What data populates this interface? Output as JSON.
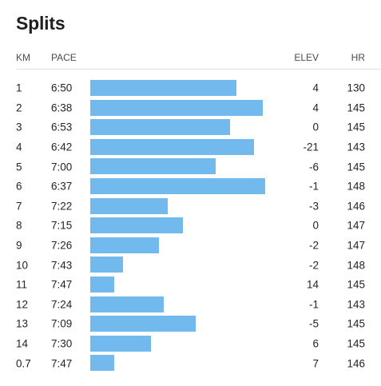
{
  "title": "Splits",
  "columns": {
    "km": "KM",
    "pace": "PACE",
    "elev": "ELEV",
    "hr": "HR"
  },
  "colors": {
    "bar": "#72b9ee"
  },
  "splits": [
    {
      "km": "1",
      "pace": "6:50",
      "elev": "4",
      "hr": "130",
      "pace_seconds": 410
    },
    {
      "km": "2",
      "pace": "6:38",
      "elev": "4",
      "hr": "145",
      "pace_seconds": 398
    },
    {
      "km": "3",
      "pace": "6:53",
      "elev": "0",
      "hr": "145",
      "pace_seconds": 413
    },
    {
      "km": "4",
      "pace": "6:42",
      "elev": "-21",
      "hr": "143",
      "pace_seconds": 402
    },
    {
      "km": "5",
      "pace": "7:00",
      "elev": "-6",
      "hr": "145",
      "pace_seconds": 420
    },
    {
      "km": "6",
      "pace": "6:37",
      "elev": "-1",
      "hr": "148",
      "pace_seconds": 397
    },
    {
      "km": "7",
      "pace": "7:22",
      "elev": "-3",
      "hr": "146",
      "pace_seconds": 442
    },
    {
      "km": "8",
      "pace": "7:15",
      "elev": "0",
      "hr": "147",
      "pace_seconds": 435
    },
    {
      "km": "9",
      "pace": "7:26",
      "elev": "-2",
      "hr": "147",
      "pace_seconds": 446
    },
    {
      "km": "10",
      "pace": "7:43",
      "elev": "-2",
      "hr": "148",
      "pace_seconds": 463
    },
    {
      "km": "11",
      "pace": "7:47",
      "elev": "14",
      "hr": "145",
      "pace_seconds": 467
    },
    {
      "km": "12",
      "pace": "7:24",
      "elev": "-1",
      "hr": "143",
      "pace_seconds": 444
    },
    {
      "km": "13",
      "pace": "7:09",
      "elev": "-5",
      "hr": "145",
      "pace_seconds": 429
    },
    {
      "km": "14",
      "pace": "7:30",
      "elev": "6",
      "hr": "145",
      "pace_seconds": 450
    },
    {
      "km": "0.7",
      "pace": "7:47",
      "elev": "7",
      "hr": "146",
      "pace_seconds": 467
    }
  ]
}
